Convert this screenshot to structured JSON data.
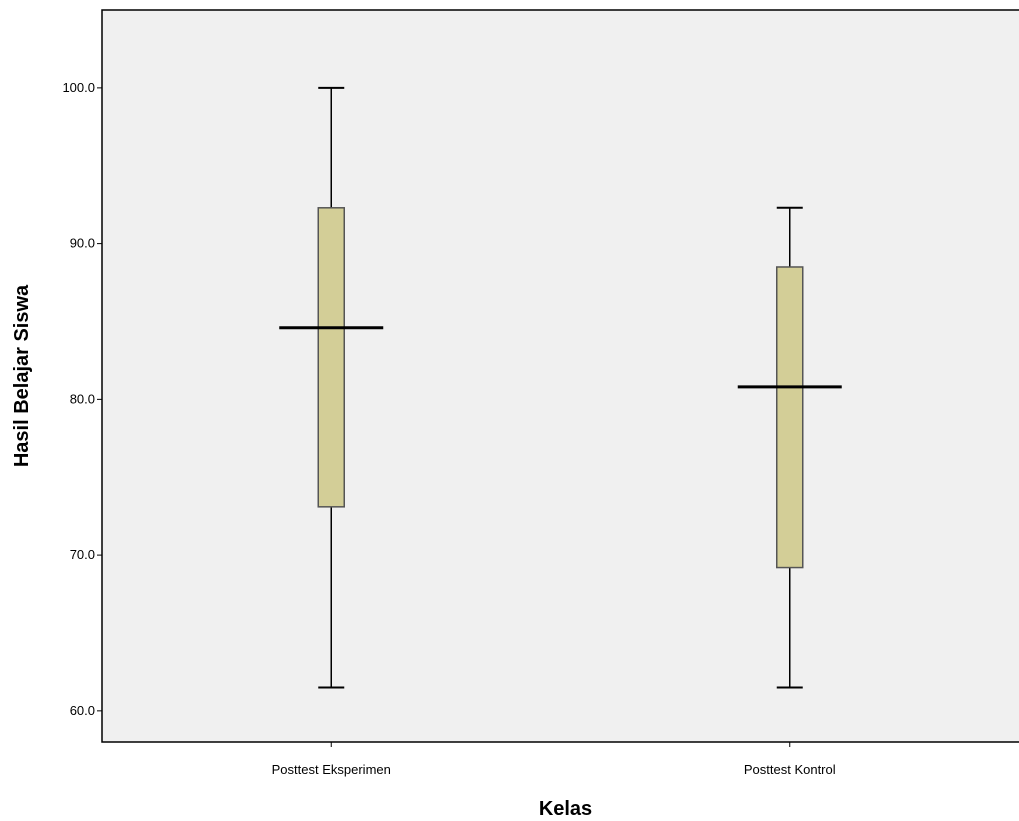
{
  "chart_data": {
    "type": "boxplot",
    "title": "",
    "xlabel": "Kelas",
    "ylabel": "Hasil Belajar Siswa",
    "ylim": [
      58,
      105
    ],
    "y_ticks": [
      {
        "value": 60,
        "label": "60.0"
      },
      {
        "value": 70,
        "label": "70.0"
      },
      {
        "value": 80,
        "label": "80.0"
      },
      {
        "value": 90,
        "label": "90.0"
      },
      {
        "value": 100,
        "label": "100.0"
      }
    ],
    "categories": [
      "Posttest Eksperimen",
      "Posttest Kontrol"
    ],
    "boxes": [
      {
        "category": "Posttest Eksperimen",
        "min": 61.5,
        "q1": 73.1,
        "median": 84.6,
        "q3": 92.3,
        "max": 100.0
      },
      {
        "category": "Posttest Kontrol",
        "min": 61.5,
        "q1": 69.2,
        "median": 80.8,
        "q3": 88.5,
        "max": 92.3
      }
    ],
    "grid": false,
    "colors": {
      "plot_background": "#f0f0f0",
      "box_fill": "#d3ce97",
      "box_stroke": "#555555",
      "whisker": "#000000"
    }
  }
}
